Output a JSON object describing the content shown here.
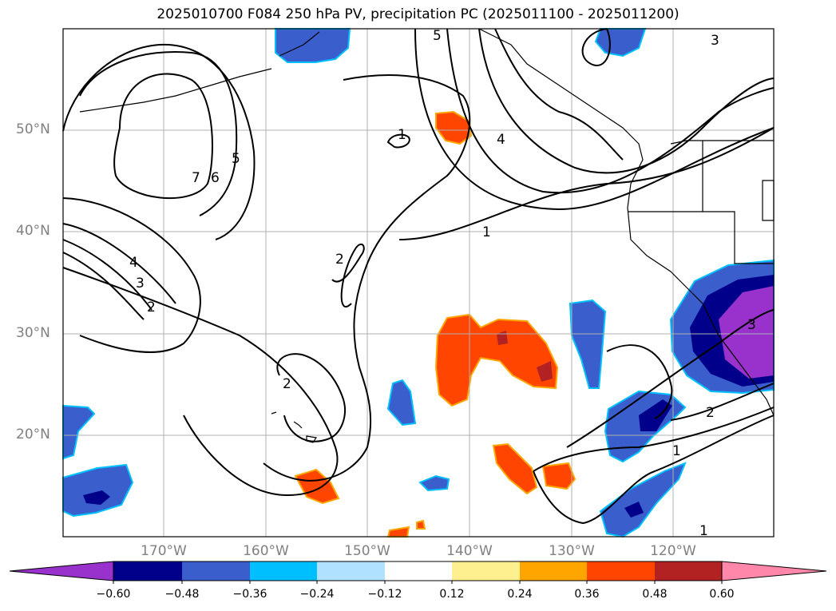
{
  "title": "2025010700 F084 250 hPa PV, precipitation PC (2025011100 - 2025011200)",
  "lat_labels": [
    "50°N",
    "40°N",
    "30°N",
    "20°N"
  ],
  "lon_labels": [
    "170°W",
    "160°W",
    "150°W",
    "140°W",
    "130°W",
    "120°W"
  ],
  "colorbar": {
    "ticks": [
      "−0.60",
      "−0.48",
      "−0.36",
      "−0.24",
      "−0.12",
      "0.12",
      "0.24",
      "0.36",
      "0.48",
      "0.60"
    ],
    "colors": [
      "#9932cc",
      "#00008b",
      "#3a5fcd",
      "#00bfff",
      "#b0e2ff",
      "#ffffff",
      "#fff08f",
      "#ffa500",
      "#ff4500",
      "#b22222",
      "#ff88aa"
    ]
  },
  "contour_labels": [
    "1",
    "2",
    "3",
    "4",
    "5",
    "6",
    "7"
  ],
  "fill_colors": {
    "orange": "#ff4500",
    "darkred": "#b22222",
    "blue": "#3a5fcd",
    "navy": "#00008b",
    "purple": "#9932cc",
    "cyan": "#00bfff"
  }
}
